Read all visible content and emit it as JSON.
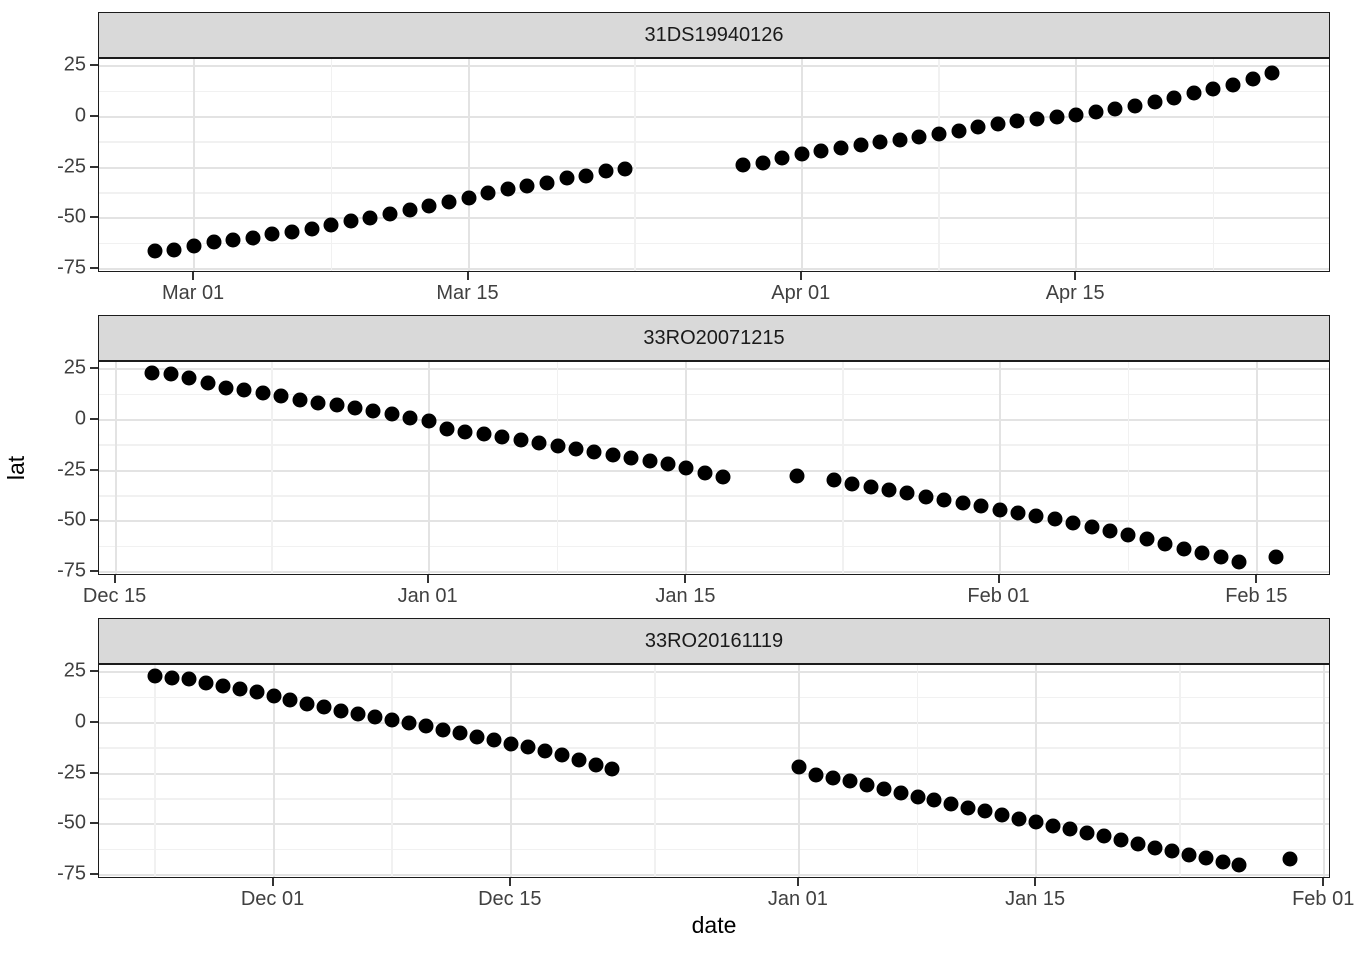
{
  "figure": {
    "x_axis_title": "date",
    "y_axis_title": "lat",
    "colors": {
      "background": "#ffffff",
      "strip_bg": "#d9d9d9",
      "panel_border": "#1c1c1c",
      "grid_major": "#e3e3e3",
      "grid_minor": "#f1f1f1",
      "point": "#000000",
      "tick_mark": "#333333",
      "tick_label": "#404040",
      "axis_title": "#000000"
    }
  },
  "y_scale": {
    "ticks": [
      25,
      0,
      -25,
      -50,
      -75
    ],
    "minor": [
      12.5,
      -12.5,
      -37.5,
      -62.5
    ],
    "domain": [
      28.5,
      -77
    ]
  },
  "chart_data": [
    {
      "type": "scatter",
      "title": "31DS19940126",
      "xlabel": "date",
      "ylabel": "lat",
      "x_unit": "days since Mar 01",
      "x_domain": [
        -4.85,
        58.0
      ],
      "x_ticks": [
        {
          "label": "Mar 01",
          "d": 0
        },
        {
          "label": "Mar 15",
          "d": 14
        },
        {
          "label": "Apr 01",
          "d": 31
        },
        {
          "label": "Apr 15",
          "d": 45
        }
      ],
      "x_minor": [
        7,
        22.5,
        38,
        52
      ],
      "points": [
        [
          -2,
          -66
        ],
        [
          -1,
          -65.5
        ],
        [
          0,
          -63.5
        ],
        [
          1,
          -61.5
        ],
        [
          2,
          -60.5
        ],
        [
          3,
          -59.5
        ],
        [
          4,
          -58
        ],
        [
          5,
          -57
        ],
        [
          6,
          -55.5
        ],
        [
          7,
          -53.5
        ],
        [
          8,
          -51.5
        ],
        [
          9,
          -50
        ],
        [
          10,
          -48
        ],
        [
          11,
          -46
        ],
        [
          12,
          -44
        ],
        [
          13,
          -42
        ],
        [
          14,
          -40
        ],
        [
          15,
          -37.5
        ],
        [
          16,
          -35.5
        ],
        [
          17,
          -34
        ],
        [
          18,
          -32.5
        ],
        [
          19,
          -30
        ],
        [
          20,
          -29
        ],
        [
          21,
          -26.5
        ],
        [
          22,
          -25.5
        ],
        [
          28,
          -24
        ],
        [
          29,
          -23
        ],
        [
          30,
          -20.5
        ],
        [
          31,
          -18.5
        ],
        [
          32,
          -17
        ],
        [
          33,
          -15.5
        ],
        [
          34,
          -14
        ],
        [
          35,
          -12.5
        ],
        [
          36,
          -11.5
        ],
        [
          37,
          -10
        ],
        [
          38,
          -8.5
        ],
        [
          39,
          -7
        ],
        [
          40,
          -5
        ],
        [
          41,
          -3.5
        ],
        [
          42,
          -2
        ],
        [
          43,
          -1
        ],
        [
          44,
          0
        ],
        [
          45,
          1
        ],
        [
          46,
          2.5
        ],
        [
          47,
          4
        ],
        [
          48,
          5.5
        ],
        [
          49,
          7.5
        ],
        [
          50,
          9.5
        ],
        [
          51,
          11.5
        ],
        [
          52,
          13.5
        ],
        [
          53,
          15.5
        ],
        [
          54,
          18.5
        ],
        [
          55,
          21.5
        ]
      ]
    },
    {
      "type": "scatter",
      "title": "33RO20071215",
      "xlabel": "date",
      "ylabel": "lat",
      "x_unit": "days since Jan 01",
      "x_domain": [
        -17.9,
        49.0
      ],
      "x_ticks": [
        {
          "label": "Dec 15",
          "d": -17
        },
        {
          "label": "Jan 01",
          "d": 0
        },
        {
          "label": "Jan 15",
          "d": 14
        },
        {
          "label": "Feb 01",
          "d": 31
        },
        {
          "label": "Feb 15",
          "d": 45
        }
      ],
      "x_minor": [
        -8.5,
        7,
        22.5,
        38,
        52
      ],
      "points": [
        [
          -15,
          23
        ],
        [
          -14,
          22.5
        ],
        [
          -13,
          20.5
        ],
        [
          -12,
          18
        ],
        [
          -11,
          15.5
        ],
        [
          -10,
          14.5
        ],
        [
          -9,
          13
        ],
        [
          -8,
          11.5
        ],
        [
          -7,
          10
        ],
        [
          -6,
          8.5
        ],
        [
          -5,
          7.5
        ],
        [
          -4,
          6
        ],
        [
          -3,
          4.5
        ],
        [
          -2,
          3
        ],
        [
          -1,
          1
        ],
        [
          0,
          -0.5
        ],
        [
          1,
          -4.5
        ],
        [
          2,
          -6
        ],
        [
          3,
          -7
        ],
        [
          4,
          -8.5
        ],
        [
          5,
          -10
        ],
        [
          6,
          -11.5
        ],
        [
          7,
          -13
        ],
        [
          8,
          -14.5
        ],
        [
          9,
          -16
        ],
        [
          10,
          -17.5
        ],
        [
          11,
          -19
        ],
        [
          12,
          -20.5
        ],
        [
          13,
          -22
        ],
        [
          14,
          -24
        ],
        [
          15,
          -26
        ],
        [
          16,
          -28
        ],
        [
          20,
          -27.5
        ],
        [
          22,
          -29.5
        ],
        [
          23,
          -31.5
        ],
        [
          24,
          -33
        ],
        [
          25,
          -34.5
        ],
        [
          26,
          -36
        ],
        [
          27,
          -38
        ],
        [
          28,
          -39.5
        ],
        [
          29,
          -41
        ],
        [
          30,
          -42.5
        ],
        [
          31,
          -44.5
        ],
        [
          32,
          -46
        ],
        [
          33,
          -47.5
        ],
        [
          34,
          -49
        ],
        [
          35,
          -51
        ],
        [
          36,
          -53
        ],
        [
          37,
          -55
        ],
        [
          38,
          -57
        ],
        [
          39,
          -59
        ],
        [
          40,
          -61
        ],
        [
          41,
          -63.5
        ],
        [
          42,
          -65.5
        ],
        [
          43,
          -67.5
        ],
        [
          44,
          -70
        ],
        [
          46,
          -67.5
        ]
      ]
    },
    {
      "type": "scatter",
      "title": "33RO20161119",
      "xlabel": "date",
      "ylabel": "lat",
      "x_unit": "days since Jan 01",
      "x_domain": [
        -41.3,
        31.4
      ],
      "x_ticks": [
        {
          "label": "Dec 01",
          "d": -31
        },
        {
          "label": "Dec 15",
          "d": -17
        },
        {
          "label": "Jan 01",
          "d": 0
        },
        {
          "label": "Jan 15",
          "d": 14
        },
        {
          "label": "Feb 01",
          "d": 31
        }
      ],
      "x_minor": [
        -38,
        -24,
        -8.5,
        7,
        22.5,
        38
      ],
      "points": [
        [
          -38,
          23
        ],
        [
          -37,
          22
        ],
        [
          -36,
          21.5
        ],
        [
          -35,
          19.5
        ],
        [
          -34,
          18
        ],
        [
          -33,
          16.5
        ],
        [
          -32,
          15
        ],
        [
          -31,
          13
        ],
        [
          -30,
          11
        ],
        [
          -29,
          9.5
        ],
        [
          -28,
          8
        ],
        [
          -27,
          6
        ],
        [
          -26,
          4.5
        ],
        [
          -25,
          3
        ],
        [
          -24,
          1.5
        ],
        [
          -23,
          0
        ],
        [
          -22,
          -1.5
        ],
        [
          -21,
          -3.5
        ],
        [
          -20,
          -5
        ],
        [
          -19,
          -7
        ],
        [
          -18,
          -8.5
        ],
        [
          -17,
          -10.5
        ],
        [
          -16,
          -12
        ],
        [
          -15,
          -14
        ],
        [
          -14,
          -16
        ],
        [
          -13,
          -18.5
        ],
        [
          -12,
          -21
        ],
        [
          -11,
          -23
        ],
        [
          0,
          -22
        ],
        [
          1,
          -25.5
        ],
        [
          2,
          -27
        ],
        [
          3,
          -28.5
        ],
        [
          4,
          -30.5
        ],
        [
          5,
          -32.5
        ],
        [
          6,
          -34.5
        ],
        [
          7,
          -36.5
        ],
        [
          8,
          -38
        ],
        [
          9,
          -40
        ],
        [
          10,
          -42
        ],
        [
          11,
          -43.5
        ],
        [
          12,
          -45.5
        ],
        [
          13,
          -47.5
        ],
        [
          14,
          -49
        ],
        [
          15,
          -51
        ],
        [
          16,
          -52.5
        ],
        [
          17,
          -54.5
        ],
        [
          18,
          -56
        ],
        [
          19,
          -58
        ],
        [
          20,
          -59.5
        ],
        [
          21,
          -61.5
        ],
        [
          22,
          -63
        ],
        [
          23,
          -65
        ],
        [
          24,
          -66.5
        ],
        [
          25,
          -68.5
        ],
        [
          26,
          -70
        ],
        [
          29,
          -67
        ]
      ]
    }
  ]
}
